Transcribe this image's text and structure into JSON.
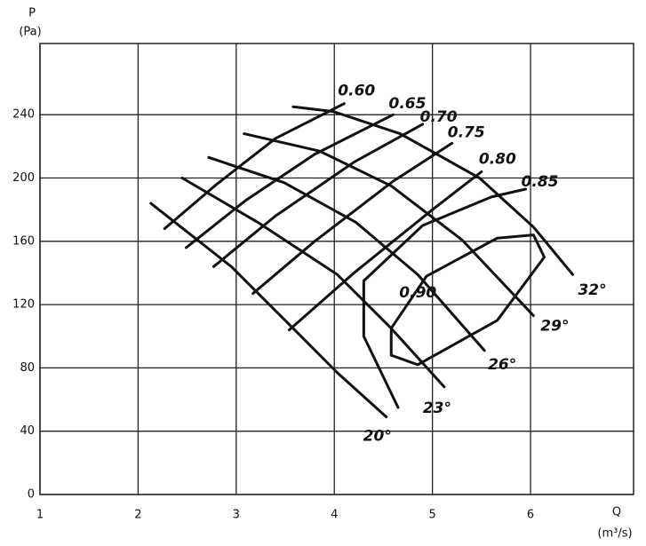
{
  "chart_data": {
    "type": "line",
    "y_label": "P",
    "y_unit": "(Pa)",
    "x_label": "Q",
    "x_unit": "(m³/s)",
    "xlim": [
      1,
      7.05
    ],
    "ylim": [
      0,
      285
    ],
    "xticks": [
      1,
      2,
      3,
      4,
      5,
      6
    ],
    "yticks": [
      0,
      40,
      80,
      120,
      160,
      200,
      240
    ],
    "grid": true,
    "color": "#111111",
    "series": [
      {
        "name": "20°",
        "x": [
          2.13,
          2.95,
          3.58,
          4.03,
          4.53
        ],
        "values": [
          184,
          144,
          105,
          77,
          49
        ]
      },
      {
        "name": "23°",
        "x": [
          2.45,
          3.22,
          4.03,
          4.58,
          5.12
        ],
        "values": [
          200,
          172,
          139,
          105,
          68
        ]
      },
      {
        "name": "26°",
        "x": [
          2.72,
          3.49,
          4.22,
          4.85,
          5.53
        ],
        "values": [
          213,
          197,
          172,
          139,
          91
        ]
      },
      {
        "name": "29°",
        "x": [
          3.08,
          3.85,
          4.58,
          5.3,
          6.03
        ],
        "values": [
          228,
          217,
          195,
          161,
          113
        ]
      },
      {
        "name": "32°",
        "x": [
          3.58,
          3.99,
          4.67,
          5.48,
          6.03,
          6.43
        ],
        "values": [
          245,
          242,
          228,
          200,
          169,
          139
        ]
      },
      {
        "name": "0.60",
        "x": [
          2.27,
          2.8,
          3.4,
          4.1
        ],
        "values": [
          168,
          196,
          225,
          247
        ]
      },
      {
        "name": "0.65",
        "x": [
          2.49,
          3.1,
          3.8,
          4.6
        ],
        "values": [
          156,
          186,
          215,
          240
        ]
      },
      {
        "name": "0.70",
        "x": [
          2.77,
          3.4,
          4.2,
          4.9
        ],
        "values": [
          144,
          176,
          210,
          234
        ]
      },
      {
        "name": "0.75",
        "x": [
          3.17,
          3.8,
          4.6,
          5.2
        ],
        "values": [
          127,
          160,
          198,
          222
        ]
      },
      {
        "name": "0.80",
        "x": [
          3.54,
          4.2,
          5.0,
          5.5
        ],
        "values": [
          104,
          140,
          180,
          204
        ]
      },
      {
        "name": "0.85",
        "x": [
          4.65,
          4.3,
          4.3,
          4.9,
          5.6,
          5.95
        ],
        "values": [
          55,
          100,
          135,
          170,
          188,
          193
        ]
      },
      {
        "name": "0.90",
        "x": [
          4.58,
          4.85,
          5.66,
          6.14,
          6.03,
          5.66,
          4.94,
          4.58,
          4.58
        ],
        "values": [
          88,
          82,
          110,
          150,
          164,
          162,
          138,
          105,
          88
        ]
      }
    ]
  }
}
